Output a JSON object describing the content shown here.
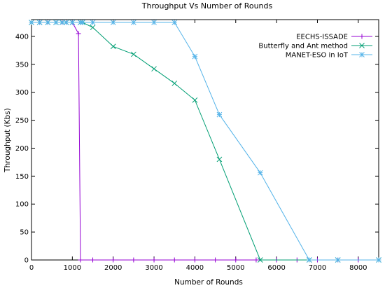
{
  "chart_data": {
    "type": "line",
    "title": "Throughput Vs Number of Rounds",
    "xlabel": "Number of  Rounds",
    "ylabel": "Throughput (Kbs)",
    "xlim": [
      0,
      8500
    ],
    "ylim": [
      0,
      430
    ],
    "xticks": [
      0,
      1000,
      2000,
      3000,
      4000,
      5000,
      6000,
      7000,
      8000
    ],
    "yticks": [
      0,
      50,
      100,
      150,
      200,
      250,
      300,
      350,
      400
    ],
    "grid": false,
    "legend_position": "top-right",
    "series": [
      {
        "name": "EECHS-ISSADE",
        "color": "#9400d3",
        "marker": "plus",
        "x": [
          0,
          200,
          400,
          600,
          750,
          850,
          1000,
          1150,
          1200,
          1500,
          2000,
          2500,
          3000,
          3500,
          4000,
          4500,
          5000,
          5500,
          6000,
          6500,
          7000,
          7500,
          8000,
          8500
        ],
        "y": [
          425,
          425,
          425,
          425,
          425,
          425,
          425,
          405,
          0,
          0,
          0,
          0,
          0,
          0,
          0,
          0,
          0,
          0,
          0,
          0,
          0,
          0,
          0,
          0
        ]
      },
      {
        "name": "Butterfly and Ant method",
        "color": "#009e73",
        "marker": "x",
        "x": [
          0,
          200,
          400,
          600,
          750,
          850,
          1000,
          1200,
          1250,
          1500,
          2000,
          2500,
          3000,
          3500,
          4000,
          4600,
          5600,
          6800,
          7500,
          8500
        ],
        "y": [
          425,
          425,
          425,
          425,
          425,
          425,
          425,
          425,
          425,
          416,
          382,
          368,
          342,
          316,
          286,
          180,
          0,
          0,
          0,
          0
        ]
      },
      {
        "name": "MANET-ESO in IoT",
        "color": "#56b4e9",
        "marker": "star",
        "x": [
          0,
          200,
          400,
          600,
          750,
          850,
          1000,
          1200,
          1250,
          1500,
          2000,
          2500,
          3000,
          3500,
          4000,
          4600,
          5600,
          6800,
          7500,
          8500
        ],
        "y": [
          425,
          425,
          425,
          425,
          425,
          425,
          425,
          425,
          425,
          425,
          425,
          425,
          425,
          425,
          364,
          260,
          156,
          0,
          0,
          0
        ]
      }
    ]
  }
}
